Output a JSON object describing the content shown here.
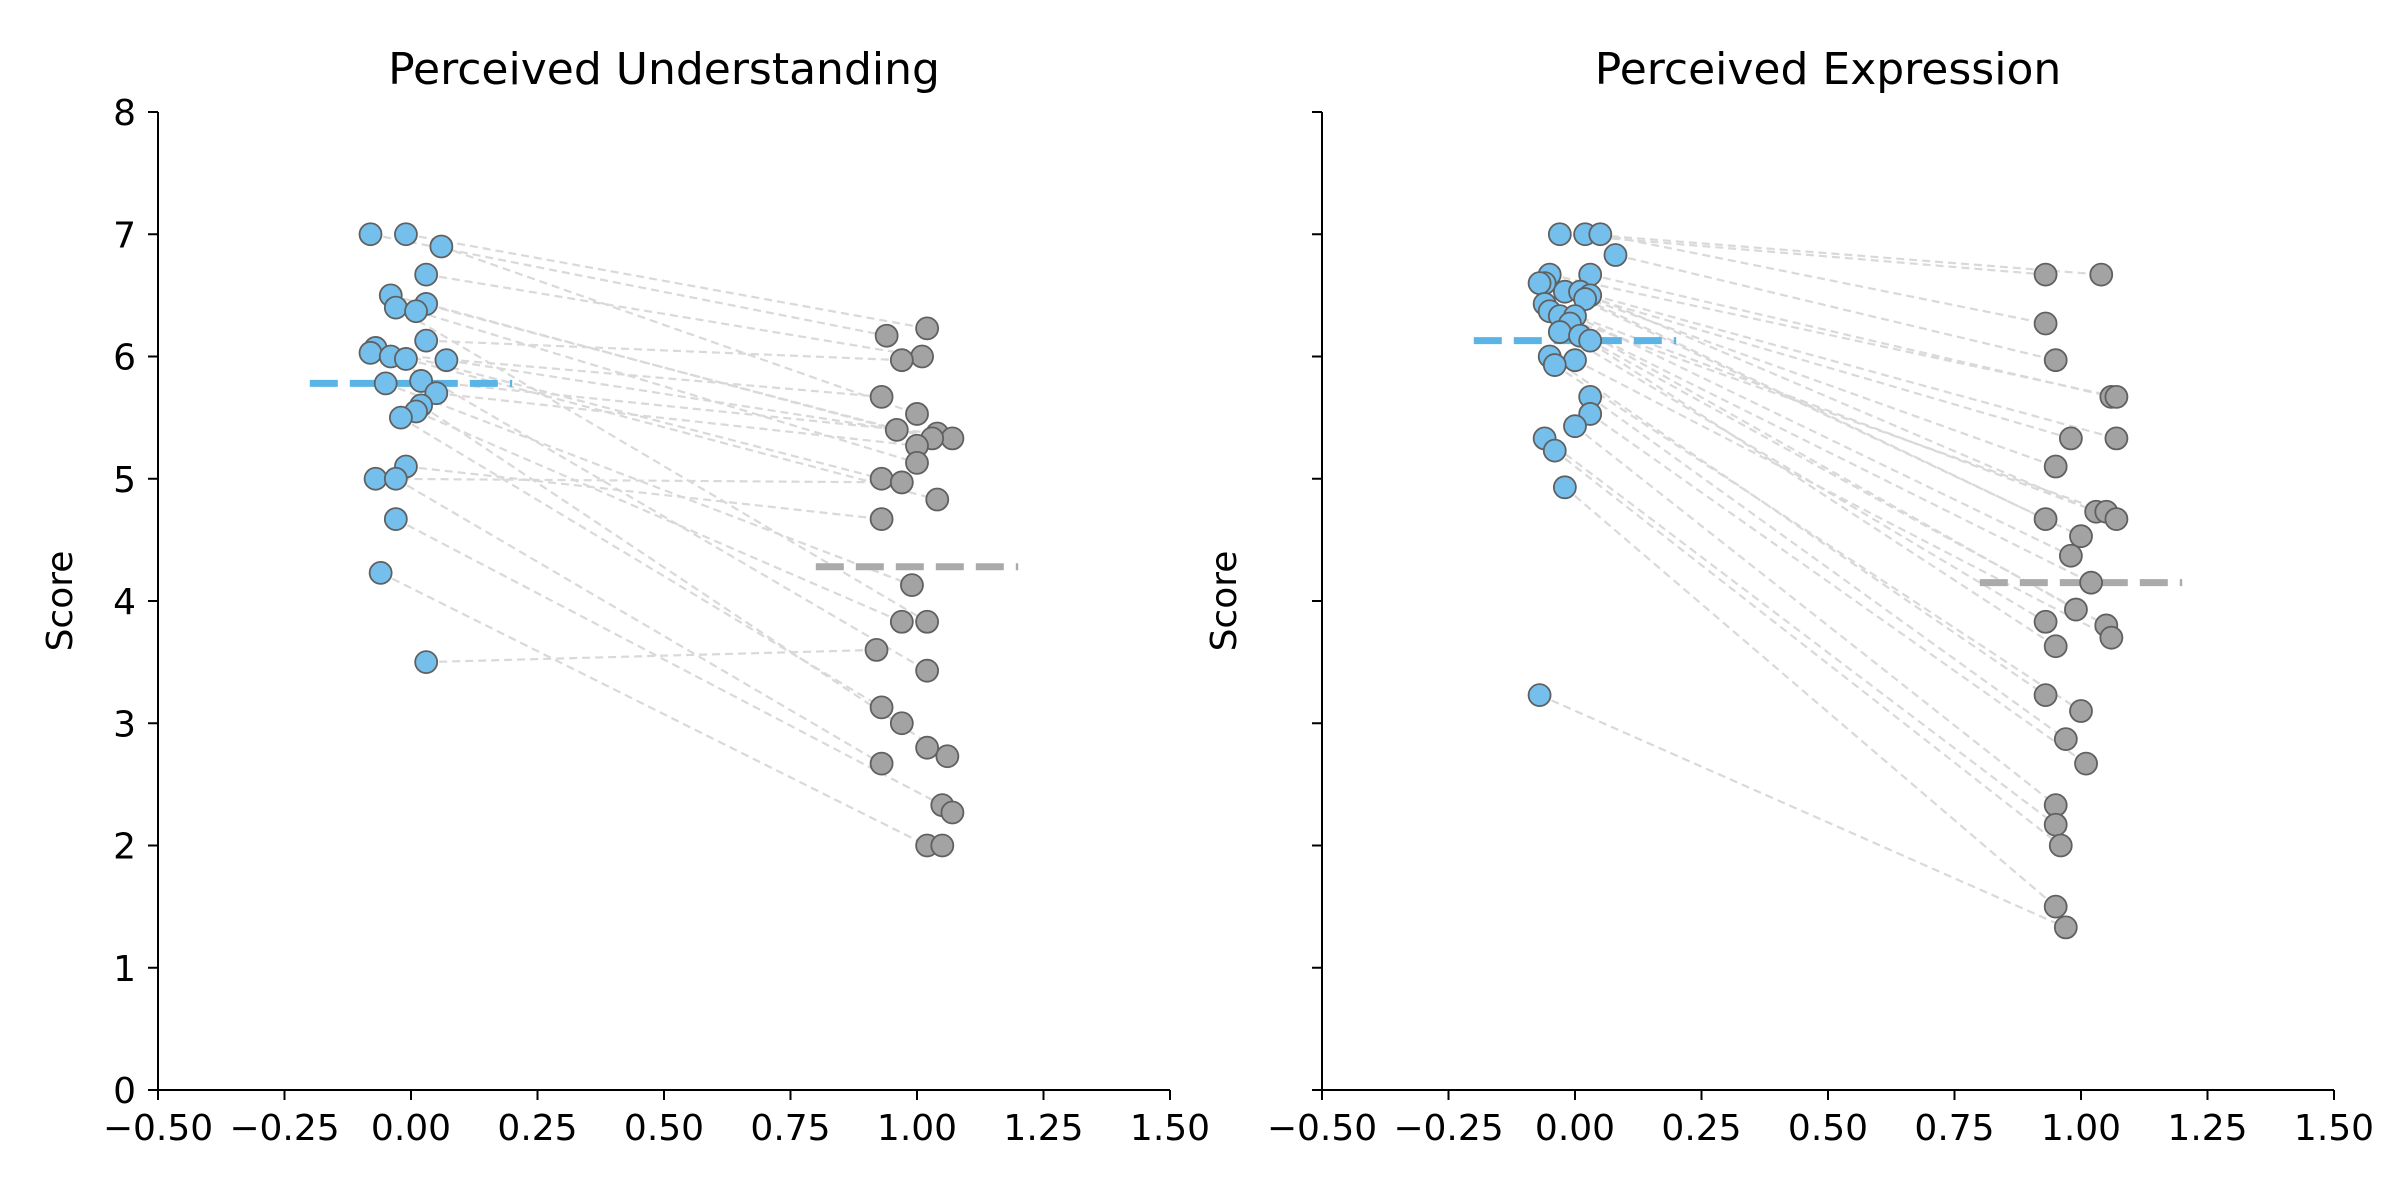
{
  "chart_data": [
    {
      "type": "scatter",
      "title": "Perceived Understanding",
      "ylabel": "Score",
      "xlabel": "",
      "xlim": [
        -0.5,
        1.5
      ],
      "ylim": [
        0,
        8
      ],
      "xticks": [
        -0.5,
        -0.25,
        0.0,
        0.25,
        0.5,
        0.75,
        1.0,
        1.25,
        1.5
      ],
      "xtick_labels": [
        "−0.50",
        "−0.25",
        "0.00",
        "0.25",
        "0.50",
        "0.75",
        "1.00",
        "1.25",
        "1.50"
      ],
      "yticks": [
        0,
        1,
        2,
        3,
        4,
        5,
        6,
        7,
        8
      ],
      "ytick_labels": [
        "0",
        "1",
        "2",
        "3",
        "4",
        "5",
        "6",
        "7",
        "8"
      ],
      "grid": false,
      "series": [
        {
          "color": "#74bfec",
          "mean": 5.78,
          "mean_color": "#5ab4e6",
          "mean_range": [
            -0.2,
            0.2
          ],
          "points": [
            [
              -0.08,
              7.0
            ],
            [
              -0.01,
              7.0
            ],
            [
              0.06,
              6.9
            ],
            [
              0.03,
              6.67
            ],
            [
              -0.04,
              6.5
            ],
            [
              -0.03,
              6.4
            ],
            [
              0.03,
              6.43
            ],
            [
              0.01,
              6.37
            ],
            [
              0.03,
              6.13
            ],
            [
              -0.07,
              6.07
            ],
            [
              -0.08,
              6.03
            ],
            [
              -0.04,
              6.0
            ],
            [
              -0.01,
              5.98
            ],
            [
              0.07,
              5.97
            ],
            [
              0.02,
              5.8
            ],
            [
              -0.05,
              5.78
            ],
            [
              0.05,
              5.7
            ],
            [
              0.02,
              5.6
            ],
            [
              0.01,
              5.55
            ],
            [
              -0.02,
              5.5
            ],
            [
              -0.01,
              5.1
            ],
            [
              -0.07,
              5.0
            ],
            [
              -0.03,
              5.0
            ],
            [
              -0.03,
              4.67
            ],
            [
              -0.06,
              4.23
            ],
            [
              0.03,
              3.5
            ]
          ]
        },
        {
          "color": "#a3a3a3",
          "mean": 4.28,
          "mean_color": "#aaaaaa",
          "mean_range": [
            0.8,
            1.2
          ],
          "points": [
            [
              1.02,
              6.23
            ],
            [
              0.94,
              6.17
            ],
            [
              1.01,
              6.0
            ],
            [
              0.97,
              5.97
            ],
            [
              0.93,
              5.67
            ],
            [
              1.0,
              5.53
            ],
            [
              0.96,
              5.4
            ],
            [
              1.04,
              5.37
            ],
            [
              1.07,
              5.33
            ],
            [
              1.03,
              5.33
            ],
            [
              1.0,
              5.27
            ],
            [
              1.0,
              5.13
            ],
            [
              0.93,
              5.0
            ],
            [
              0.97,
              4.97
            ],
            [
              1.04,
              4.83
            ],
            [
              0.93,
              4.67
            ],
            [
              0.99,
              4.13
            ],
            [
              0.97,
              3.83
            ],
            [
              1.02,
              3.83
            ],
            [
              0.92,
              3.6
            ],
            [
              1.02,
              3.43
            ],
            [
              0.93,
              3.13
            ],
            [
              0.97,
              3.0
            ],
            [
              1.02,
              2.8
            ],
            [
              1.06,
              2.73
            ],
            [
              0.93,
              2.67
            ],
            [
              1.05,
              2.33
            ],
            [
              1.07,
              2.27
            ],
            [
              1.02,
              2.0
            ],
            [
              1.05,
              2.0
            ]
          ]
        }
      ],
      "pair_lines_color": "#d9d9d9",
      "pairs": [
        [
          0,
          1
        ],
        [
          1,
          0
        ],
        [
          2,
          5
        ],
        [
          3,
          2
        ],
        [
          4,
          9
        ],
        [
          5,
          18
        ],
        [
          6,
          6
        ],
        [
          7,
          11
        ],
        [
          8,
          3
        ],
        [
          9,
          12
        ],
        [
          10,
          4
        ],
        [
          11,
          20
        ],
        [
          12,
          14
        ],
        [
          13,
          8
        ],
        [
          14,
          7
        ],
        [
          15,
          16
        ],
        [
          16,
          10
        ],
        [
          17,
          24
        ],
        [
          18,
          17
        ],
        [
          19,
          21
        ],
        [
          20,
          15
        ],
        [
          21,
          13
        ],
        [
          22,
          25
        ],
        [
          23,
          26
        ],
        [
          24,
          28
        ],
        [
          25,
          19
        ]
      ]
    },
    {
      "type": "scatter",
      "title": "Perceived Expression",
      "ylabel": "Score",
      "xlabel": "",
      "xlim": [
        -0.5,
        1.5
      ],
      "ylim": [
        0,
        8
      ],
      "xticks": [
        -0.5,
        -0.25,
        0.0,
        0.25,
        0.5,
        0.75,
        1.0,
        1.25,
        1.5
      ],
      "xtick_labels": [
        "−0.50",
        "−0.25",
        "0.00",
        "0.25",
        "0.50",
        "0.75",
        "1.00",
        "1.25",
        "1.50"
      ],
      "yticks": [
        0,
        1,
        2,
        3,
        4,
        5,
        6,
        7,
        8
      ],
      "ytick_labels": [],
      "grid": false,
      "series": [
        {
          "color": "#74bfec",
          "mean": 6.13,
          "mean_color": "#5ab4e6",
          "mean_range": [
            -0.2,
            0.2
          ],
          "points": [
            [
              -0.03,
              7.0
            ],
            [
              0.02,
              7.0
            ],
            [
              0.05,
              7.0
            ],
            [
              0.08,
              6.83
            ],
            [
              -0.05,
              6.67
            ],
            [
              0.03,
              6.67
            ],
            [
              -0.06,
              6.6
            ],
            [
              -0.07,
              6.6
            ],
            [
              -0.02,
              6.53
            ],
            [
              0.01,
              6.53
            ],
            [
              0.03,
              6.5
            ],
            [
              -0.06,
              6.43
            ],
            [
              0.02,
              6.47
            ],
            [
              -0.05,
              6.37
            ],
            [
              -0.03,
              6.33
            ],
            [
              0.0,
              6.33
            ],
            [
              -0.01,
              6.27
            ],
            [
              -0.03,
              6.2
            ],
            [
              0.01,
              6.17
            ],
            [
              0.03,
              6.13
            ],
            [
              -0.05,
              6.0
            ],
            [
              0.0,
              5.97
            ],
            [
              -0.04,
              5.93
            ],
            [
              0.03,
              5.67
            ],
            [
              0.03,
              5.53
            ],
            [
              0.0,
              5.43
            ],
            [
              -0.06,
              5.33
            ],
            [
              -0.04,
              5.23
            ],
            [
              -0.02,
              4.93
            ],
            [
              -0.07,
              3.23
            ]
          ]
        },
        {
          "color": "#a3a3a3",
          "mean": 4.15,
          "mean_color": "#aaaaaa",
          "mean_range": [
            0.8,
            1.2
          ],
          "points": [
            [
              0.93,
              6.67
            ],
            [
              1.04,
              6.67
            ],
            [
              0.93,
              6.27
            ],
            [
              0.95,
              5.97
            ],
            [
              1.06,
              5.67
            ],
            [
              1.07,
              5.67
            ],
            [
              0.98,
              5.33
            ],
            [
              1.07,
              5.33
            ],
            [
              0.95,
              5.1
            ],
            [
              1.03,
              4.73
            ],
            [
              1.05,
              4.73
            ],
            [
              0.93,
              4.67
            ],
            [
              1.07,
              4.67
            ],
            [
              1.0,
              4.53
            ],
            [
              0.98,
              4.37
            ],
            [
              1.02,
              4.15
            ],
            [
              0.99,
              3.93
            ],
            [
              0.93,
              3.83
            ],
            [
              1.05,
              3.8
            ],
            [
              1.06,
              3.7
            ],
            [
              0.95,
              3.63
            ],
            [
              0.93,
              3.23
            ],
            [
              1.0,
              3.1
            ],
            [
              0.97,
              2.87
            ],
            [
              1.01,
              2.67
            ],
            [
              0.95,
              2.33
            ],
            [
              0.95,
              2.17
            ],
            [
              0.96,
              2.0
            ],
            [
              0.95,
              1.5
            ],
            [
              0.97,
              1.33
            ]
          ]
        }
      ],
      "pair_lines_color": "#d9d9d9",
      "pairs": [
        [
          0,
          0
        ],
        [
          1,
          1
        ],
        [
          2,
          2
        ],
        [
          3,
          3
        ],
        [
          4,
          5
        ],
        [
          5,
          4
        ],
        [
          6,
          8
        ],
        [
          7,
          6
        ],
        [
          8,
          11
        ],
        [
          9,
          7
        ],
        [
          10,
          9
        ],
        [
          11,
          12
        ],
        [
          12,
          13
        ],
        [
          13,
          16
        ],
        [
          14,
          10
        ],
        [
          15,
          14
        ],
        [
          16,
          15
        ],
        [
          17,
          17
        ],
        [
          18,
          20
        ],
        [
          19,
          18
        ],
        [
          20,
          21
        ],
        [
          21,
          19
        ],
        [
          22,
          22
        ],
        [
          23,
          23
        ],
        [
          24,
          24
        ],
        [
          25,
          25
        ],
        [
          26,
          26
        ],
        [
          27,
          27
        ],
        [
          28,
          28
        ],
        [
          29,
          29
        ]
      ]
    }
  ]
}
